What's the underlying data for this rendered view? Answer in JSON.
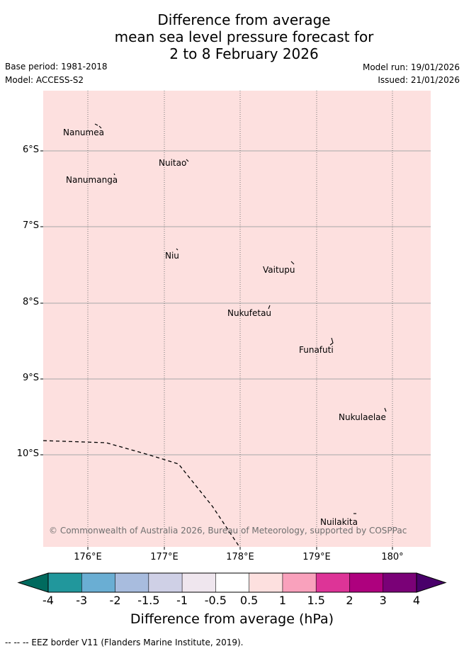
{
  "title": {
    "line1": "Difference from average",
    "line2": "mean sea level pressure forecast for",
    "line3": "2 to 8 February 2026"
  },
  "meta": {
    "base_period": "Base period: 1981-2018",
    "model": "Model: ACCESS-S2",
    "model_run": "Model run: 19/01/2026",
    "issued": "Issued: 21/01/2026"
  },
  "axes": {
    "lat_labels": [
      "6°S",
      "7°S",
      "8°S",
      "9°S",
      "10°S"
    ],
    "lon_labels": [
      "176°E",
      "177°E",
      "178°E",
      "179°E",
      "180°"
    ]
  },
  "islands": [
    {
      "name": "Nanumea"
    },
    {
      "name": "Nuitao"
    },
    {
      "name": "Nanumanga"
    },
    {
      "name": "Niu"
    },
    {
      "name": "Vaitupu"
    },
    {
      "name": "Nukufetau"
    },
    {
      "name": "Funafuti"
    },
    {
      "name": "Nukulaelae"
    },
    {
      "name": "Nuilakita"
    }
  ],
  "credit": "© Commonwealth of Australia 2026, Bureau of Meteorology, supported by COSPPac",
  "colorbar": {
    "labels": [
      "-4",
      "-3",
      "-2",
      "-1.5",
      "-1",
      "-0.5",
      "0.5",
      "1",
      "1.5",
      "2",
      "3",
      "4"
    ],
    "colors": [
      "#006a5e",
      "#21979c",
      "#6aaed3",
      "#a8bcde",
      "#cfd0e6",
      "#efe6ee",
      "#ffffff",
      "#fde0df",
      "#f9a1bc",
      "#dd3497",
      "#ae017e",
      "#7a0177",
      "#49006a"
    ],
    "title": "Difference from average (hPa)"
  },
  "map_fill_color": "#fde0df",
  "footer": "--  --  -- EEZ border V11 (Flanders Marine Institute, 2019)."
}
